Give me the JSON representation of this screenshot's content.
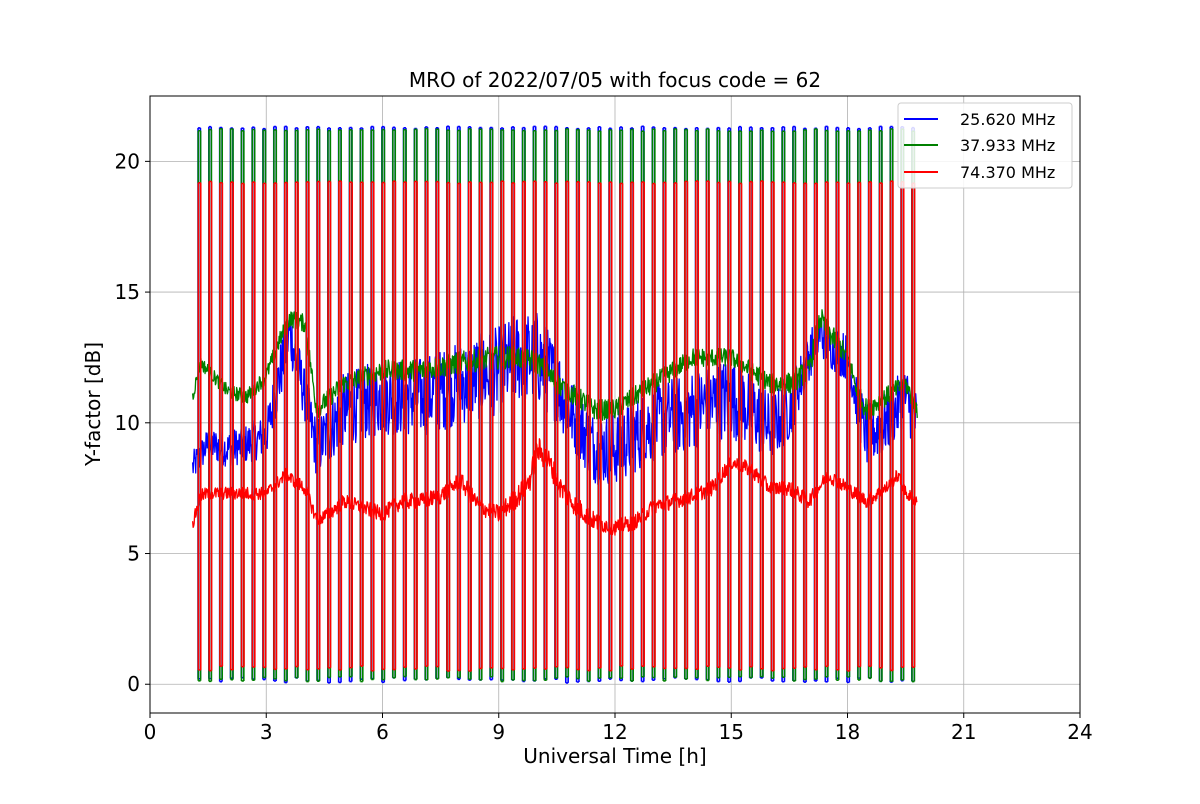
{
  "chart_data": {
    "type": "line",
    "title": "MRO of 2022/07/05 with focus code = 62",
    "xlabel": "Universal Time [h]",
    "ylabel": "Y-factor [dB]",
    "xlim": [
      0,
      24
    ],
    "ylim": [
      -1.1,
      22.5
    ],
    "x_ticks": [
      0,
      3,
      6,
      9,
      12,
      15,
      18,
      21,
      24
    ],
    "y_ticks": [
      0,
      5,
      10,
      15,
      20
    ],
    "grid": true,
    "legend_position": "top-right",
    "x_range_data": [
      1.1,
      19.8
    ],
    "pulse_count": 67,
    "series": [
      {
        "name": "25.620 MHz",
        "color": "#0000ff",
        "cal_high": 21.3,
        "cal_low": 0.15,
        "baseline": {
          "x": [
            1.1,
            1.5,
            2.0,
            2.5,
            3.0,
            3.3,
            3.6,
            4.0,
            4.3,
            5.0,
            6.0,
            7.0,
            8.0,
            9.0,
            9.5,
            10.0,
            10.5,
            11.0,
            11.5,
            12.0,
            12.5,
            13.0,
            14.0,
            15.0,
            15.5,
            16.0,
            16.5,
            17.0,
            17.3,
            17.5,
            18.0,
            18.3,
            18.5,
            19.0,
            19.5,
            19.8
          ],
          "y": [
            8.3,
            9.2,
            9.0,
            9.2,
            9.5,
            11.5,
            13.5,
            11.0,
            9.0,
            10.5,
            11.0,
            11.0,
            11.5,
            12.0,
            12.5,
            12.5,
            11.5,
            10.0,
            9.0,
            9.0,
            9.5,
            10.0,
            10.5,
            11.0,
            10.5,
            9.8,
            10.5,
            12.5,
            13.5,
            13.0,
            12.5,
            10.5,
            9.5,
            10.0,
            11.0,
            10.0
          ]
        },
        "band": {
          "x": [
            1.1,
            3.0,
            3.3,
            4.0,
            5.0,
            8.0,
            10.0,
            11.0,
            13.0,
            15.0,
            16.5,
            17.0,
            18.0,
            18.5,
            19.8
          ],
          "y": [
            0.6,
            0.8,
            1.2,
            1.0,
            1.4,
            1.6,
            1.8,
            1.3,
            1.5,
            1.6,
            1.2,
            0.9,
            0.9,
            1.2,
            1.2
          ]
        }
      },
      {
        "name": "37.933 MHz",
        "color": "#008000",
        "cal_high": 21.2,
        "cal_low": 0.2,
        "baseline": {
          "x": [
            1.1,
            1.3,
            1.5,
            2.0,
            2.5,
            3.0,
            3.3,
            3.6,
            4.0,
            4.3,
            5.0,
            6.0,
            7.0,
            8.0,
            9.0,
            9.5,
            10.0,
            10.5,
            11.0,
            11.5,
            12.0,
            12.5,
            13.0,
            14.0,
            15.0,
            15.5,
            16.0,
            16.5,
            17.0,
            17.3,
            17.5,
            18.0,
            18.3,
            18.5,
            19.0,
            19.5,
            19.8
          ],
          "y": [
            11.0,
            12.3,
            12.0,
            11.2,
            11.0,
            11.8,
            13.0,
            14.0,
            13.8,
            10.5,
            11.5,
            12.0,
            12.0,
            12.3,
            12.5,
            12.5,
            12.3,
            11.5,
            11.0,
            10.5,
            10.5,
            11.0,
            11.5,
            12.5,
            12.5,
            12.0,
            11.5,
            11.5,
            12.0,
            14.0,
            13.5,
            12.5,
            11.0,
            10.5,
            11.0,
            11.5,
            10.5
          ]
        },
        "band": {
          "x": [
            1.1,
            3.0,
            4.0,
            6.0,
            9.0,
            12.0,
            15.0,
            17.0,
            19.8
          ],
          "y": [
            0.25,
            0.3,
            0.35,
            0.4,
            0.45,
            0.4,
            0.35,
            0.45,
            0.35
          ]
        }
      },
      {
        "name": "74.370 MHz",
        "color": "#ff0000",
        "cal_high": 19.2,
        "cal_low": 0.6,
        "baseline": {
          "x": [
            1.1,
            1.3,
            1.5,
            2.0,
            3.0,
            3.5,
            4.0,
            4.3,
            4.6,
            5.0,
            6.0,
            6.5,
            7.0,
            7.5,
            8.0,
            8.5,
            9.0,
            9.5,
            9.8,
            10.0,
            10.3,
            10.6,
            11.0,
            11.5,
            12.0,
            12.5,
            13.0,
            14.0,
            14.5,
            15.0,
            15.5,
            16.0,
            16.5,
            17.0,
            17.5,
            18.0,
            18.5,
            19.0,
            19.3,
            19.5,
            19.8
          ],
          "y": [
            6.1,
            7.2,
            7.3,
            7.3,
            7.3,
            8.0,
            7.5,
            6.3,
            6.5,
            7.0,
            6.5,
            7.0,
            7.0,
            7.2,
            7.8,
            6.8,
            6.5,
            7.2,
            7.8,
            9.0,
            8.5,
            7.5,
            6.8,
            6.2,
            6.0,
            6.2,
            6.8,
            7.2,
            7.5,
            8.5,
            8.2,
            7.5,
            7.5,
            7.0,
            8.0,
            7.5,
            7.0,
            7.5,
            8.0,
            7.3,
            7.0
          ]
        },
        "band": {
          "x": [
            1.1,
            3.0,
            6.0,
            9.0,
            10.0,
            12.0,
            15.0,
            19.8
          ],
          "y": [
            0.25,
            0.25,
            0.3,
            0.35,
            0.5,
            0.3,
            0.3,
            0.25
          ]
        }
      }
    ]
  }
}
